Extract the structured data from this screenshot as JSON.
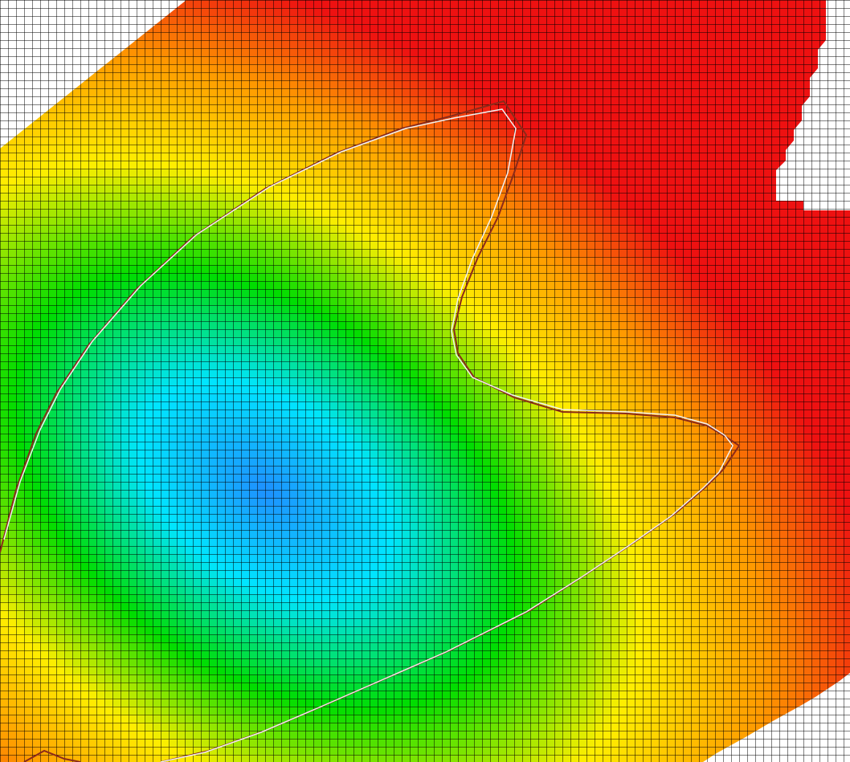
{
  "view": {
    "description_visible_text": ""
  },
  "colormap": {
    "low": "#1e90ff",
    "low_mid": "#00e5ff",
    "mid": "#00dd00",
    "mid_high": "#ffee00",
    "high_mid": "#ff9900",
    "high": "#ee1111",
    "background": "#ffffff",
    "grid_line": "#000000"
  },
  "boundaries": {
    "outer_line_color": "#8b2a1a",
    "inner_line_color": "#f0f0f0"
  },
  "grid": {
    "cell_size_units": 10
  }
}
